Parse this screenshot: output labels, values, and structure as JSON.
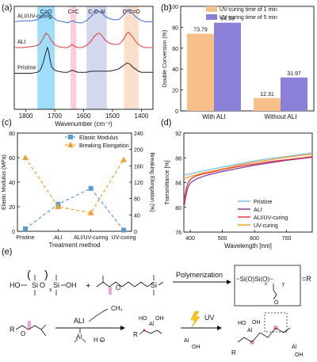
{
  "panels": {
    "a": {
      "label": "(a)"
    },
    "b": {
      "label": "(b)"
    },
    "c": {
      "label": "(c)"
    },
    "d": {
      "label": "(d)"
    },
    "e": {
      "label": "(e)"
    }
  },
  "chart_data": [
    {
      "panel": "a",
      "type": "line",
      "title": "",
      "xlabel": "Wavenumber (cm⁻¹)",
      "ylabel": "",
      "xlim": [
        1840,
        1360
      ],
      "x_ticks": [
        "1800",
        "1700",
        "1600",
        "1500",
        "1400"
      ],
      "bands": [
        {
          "label": "C=O",
          "range": [
            1760,
            1700
          ],
          "color": "#29b6f6"
        },
        {
          "label": "C=C",
          "range": [
            1645,
            1625
          ],
          "color": "#f48fb1"
        },
        {
          "label": "C-O-Al",
          "range": [
            1590,
            1520
          ],
          "color": "#9fa8da"
        },
        {
          "label": "O-C=O",
          "range": [
            1460,
            1410
          ],
          "color": "#f5b98a"
        }
      ],
      "series": [
        {
          "name": "ALI/UV-curing",
          "color": "#3a6fd8",
          "x": [
            1840,
            1810,
            1780,
            1760,
            1750,
            1740,
            1730,
            1722,
            1712,
            1700,
            1690,
            1670,
            1655,
            1640,
            1630,
            1620,
            1605,
            1590,
            1575,
            1565,
            1555,
            1545,
            1535,
            1525,
            1510,
            1495,
            1480,
            1470,
            1460,
            1452,
            1445,
            1438,
            1430,
            1420,
            1410,
            1400,
            1385,
            1370,
            1360
          ],
          "y": [
            0.85,
            0.86,
            0.86,
            0.87,
            0.89,
            0.92,
            0.94,
            0.93,
            0.9,
            0.88,
            0.86,
            0.85,
            0.84,
            0.86,
            0.85,
            0.84,
            0.84,
            0.86,
            0.9,
            0.93,
            0.96,
            0.95,
            0.93,
            0.9,
            0.88,
            0.87,
            0.87,
            0.89,
            0.92,
            0.95,
            0.97,
            0.96,
            0.93,
            0.9,
            0.88,
            0.86,
            0.85,
            0.85,
            0.85
          ]
        },
        {
          "name": "ALI",
          "color": "#e53935",
          "x": [
            1840,
            1810,
            1780,
            1760,
            1750,
            1740,
            1730,
            1722,
            1712,
            1700,
            1690,
            1670,
            1655,
            1640,
            1630,
            1620,
            1605,
            1590,
            1575,
            1565,
            1555,
            1545,
            1535,
            1525,
            1510,
            1495,
            1480,
            1470,
            1460,
            1452,
            1445,
            1438,
            1430,
            1420,
            1410,
            1400,
            1385,
            1370,
            1360
          ],
          "y": [
            0.6,
            0.6,
            0.61,
            0.62,
            0.64,
            0.69,
            0.74,
            0.72,
            0.67,
            0.63,
            0.61,
            0.6,
            0.6,
            0.63,
            0.61,
            0.6,
            0.6,
            0.62,
            0.66,
            0.7,
            0.73,
            0.74,
            0.71,
            0.67,
            0.64,
            0.63,
            0.63,
            0.65,
            0.69,
            0.73,
            0.75,
            0.73,
            0.7,
            0.66,
            0.63,
            0.61,
            0.6,
            0.6,
            0.6
          ]
        },
        {
          "name": "Pristine",
          "color": "#222222",
          "x": [
            1840,
            1810,
            1780,
            1760,
            1750,
            1740,
            1730,
            1725,
            1720,
            1715,
            1710,
            1700,
            1690,
            1670,
            1655,
            1640,
            1630,
            1620,
            1605,
            1590,
            1575,
            1560,
            1545,
            1530,
            1510,
            1495,
            1480,
            1470,
            1460,
            1450,
            1440,
            1430,
            1420,
            1410,
            1400,
            1385,
            1370,
            1360
          ],
          "y": [
            0.35,
            0.35,
            0.35,
            0.36,
            0.38,
            0.45,
            0.56,
            0.6,
            0.55,
            0.46,
            0.41,
            0.38,
            0.37,
            0.36,
            0.36,
            0.38,
            0.37,
            0.36,
            0.36,
            0.36,
            0.37,
            0.37,
            0.37,
            0.37,
            0.37,
            0.38,
            0.39,
            0.41,
            0.43,
            0.45,
            0.44,
            0.41,
            0.39,
            0.37,
            0.36,
            0.36,
            0.36,
            0.36
          ]
        }
      ]
    },
    {
      "panel": "b",
      "type": "bar",
      "title": "",
      "xlabel": "",
      "ylabel": "Double Conversion (%)",
      "ylim": [
        0,
        100
      ],
      "y_ticks": [
        "0",
        "20",
        "40",
        "60",
        "80",
        "100"
      ],
      "categories": [
        "With ALI",
        "Without ALI"
      ],
      "series": [
        {
          "name": "UV-curing time of 1 min",
          "color": "#f7c08a",
          "values": [
            73.79,
            12.31
          ],
          "labels": [
            "73.79",
            "12.31"
          ]
        },
        {
          "name": "UV-curing time of 5 min",
          "color": "#8a80d8",
          "values": [
            84.33,
            31.97
          ],
          "labels": [
            "84.33",
            "31.97"
          ]
        }
      ],
      "legend": "top-right"
    },
    {
      "panel": "c",
      "type": "line",
      "title": "",
      "xlabel": "Treatment method",
      "ylabel": "Elastic Modulus (MPa)",
      "ylabel_right": "Breaking Elongation (%)",
      "ylim": [
        0,
        80
      ],
      "ylim_right": [
        0,
        240
      ],
      "y_ticks": [
        "0",
        "20",
        "40",
        "60",
        "80"
      ],
      "y_ticks_right": [
        "0",
        "40",
        "80",
        "120",
        "160",
        "200",
        "240"
      ],
      "categories": [
        "Pristine",
        "ALI",
        "ALI/UV-curing",
        "UV-curing"
      ],
      "series": [
        {
          "name": "Elastic Modulus",
          "axis": "left",
          "color": "#5b9bd5",
          "marker": "square",
          "values": [
            2,
            22,
            35,
            1
          ]
        },
        {
          "name": "Breaking Elongation",
          "axis": "right",
          "color": "#f0a030",
          "marker": "triangle",
          "values": [
            180,
            60,
            45,
            175
          ]
        }
      ],
      "legend": "top-right"
    },
    {
      "panel": "d",
      "type": "line",
      "title": "",
      "xlabel": "Wavelength [nm]",
      "ylabel": "Transmittance [%]",
      "xlim": [
        380,
        780
      ],
      "ylim": [
        76,
        92
      ],
      "x_ticks": [
        "400",
        "500",
        "600",
        "700"
      ],
      "y_ticks": [
        "76",
        "80",
        "84",
        "88",
        "92"
      ],
      "series": [
        {
          "name": "Pristine",
          "color": "#7fc0e8",
          "x": [
            380,
            390,
            400,
            420,
            450,
            500,
            550,
            600,
            650,
            700,
            750,
            780
          ],
          "y": [
            85.2,
            85.3,
            85.4,
            85.7,
            86.0,
            86.5,
            87.0,
            87.5,
            87.9,
            88.2,
            88.6,
            88.8
          ]
        },
        {
          "name": "ALI",
          "color": "#8a3aa0",
          "x": [
            380,
            385,
            390,
            395,
            400,
            410,
            420,
            440,
            460,
            500,
            550,
            600,
            650,
            700,
            750,
            780
          ],
          "y": [
            80.0,
            81.5,
            82.8,
            83.5,
            83.9,
            84.3,
            84.6,
            85.0,
            85.3,
            85.8,
            86.3,
            86.8,
            87.2,
            87.6,
            87.9,
            88.1
          ]
        },
        {
          "name": "ALI/UV-curing",
          "color": "#e53935",
          "x": [
            380,
            385,
            390,
            395,
            400,
            410,
            420,
            440,
            460,
            500,
            550,
            600,
            650,
            700,
            750,
            780
          ],
          "y": [
            80.8,
            82.4,
            83.5,
            84.1,
            84.5,
            84.9,
            85.1,
            85.4,
            85.6,
            86.1,
            86.6,
            87.0,
            87.4,
            87.7,
            88.0,
            88.2
          ]
        },
        {
          "name": "UV-curing",
          "color": "#f0a030",
          "x": [
            380,
            390,
            400,
            420,
            450,
            500,
            550,
            600,
            650,
            700,
            750,
            780
          ],
          "y": [
            84.6,
            84.8,
            85.0,
            85.3,
            85.7,
            86.2,
            86.8,
            87.3,
            87.7,
            88.1,
            88.4,
            88.6
          ]
        }
      ],
      "legend": "bottom-right"
    }
  ],
  "scheme": {
    "reactant1_prefix": "HO",
    "reactant1_suffix": "OH",
    "subscript_x": "x",
    "subscript_y": "y",
    "plus": "+",
    "polymerization": "Polymerization",
    "equals_r": "=R",
    "r_group": "R",
    "ali": "ALI",
    "ch4": "CH₄",
    "uv": "UV",
    "al": "Al",
    "oh": "OH",
    "h2o": "H   O",
    "ho": "HO",
    "o": "O"
  }
}
